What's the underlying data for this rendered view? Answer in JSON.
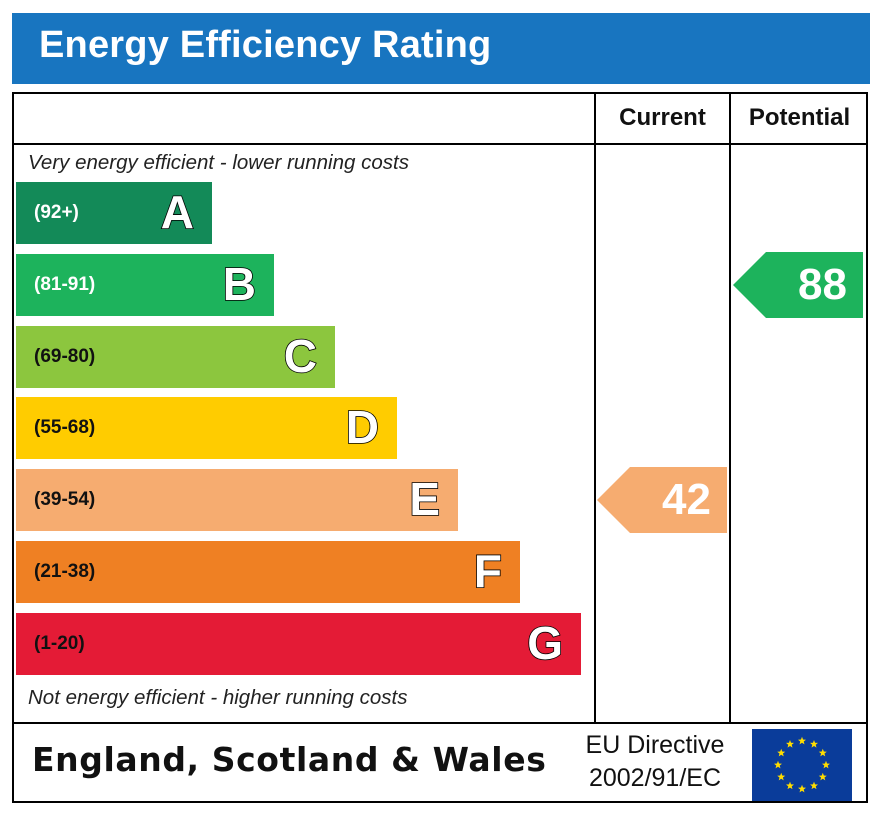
{
  "header": {
    "title": "Energy Efficiency Rating"
  },
  "columns": {
    "current": "Current",
    "potential": "Potential"
  },
  "captions": {
    "top": "Very energy efficient - lower running costs",
    "bottom": "Not energy efficient - higher running costs"
  },
  "chart_data": {
    "type": "bar",
    "title": "Energy Efficiency Rating",
    "categories": [
      "A",
      "B",
      "C",
      "D",
      "E",
      "F",
      "G"
    ],
    "ranges": [
      "(92+)",
      "(81-91)",
      "(69-80)",
      "(55-68)",
      "(39-54)",
      "(21-38)",
      "(1-20)"
    ],
    "band_colors": [
      "#138a58",
      "#1db35c",
      "#8cc63e",
      "#ffcc00",
      "#f6ac70",
      "#ef8023",
      "#e41b36"
    ],
    "range_text_colors": [
      "#ffffff",
      "#ffffff",
      "#111111",
      "#111111",
      "#111111",
      "#111111",
      "#111111"
    ],
    "current": {
      "label": "Current",
      "value": 42,
      "band": "E",
      "color": "#f6ac70"
    },
    "potential": {
      "label": "Potential",
      "value": 88,
      "band": "B",
      "color": "#1db35c"
    }
  },
  "footer": {
    "country": "England, Scotland & Wales",
    "directive_line1": "EU Directive",
    "directive_line2": "2002/91/EC",
    "flag_colors": {
      "background": "#0a3c9a",
      "stars": "#ffdd00"
    }
  }
}
